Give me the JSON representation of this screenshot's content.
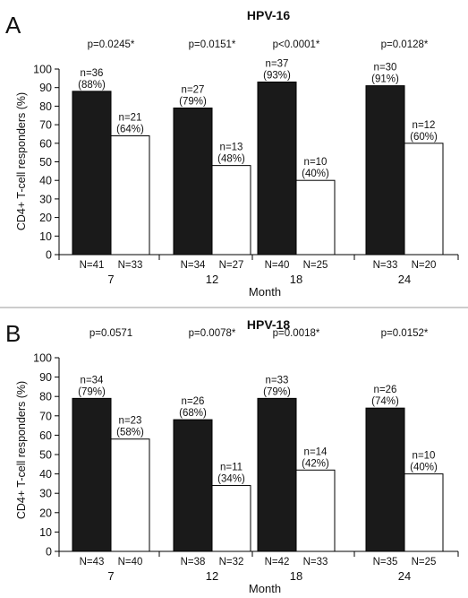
{
  "chart_data": [
    {
      "type": "bar",
      "panel": "A",
      "title": "HPV-16",
      "xlabel": "Month",
      "ylabel": "CD4+ T-cell responders (%)",
      "ylim": [
        0,
        100
      ],
      "yticks": [
        0,
        10,
        20,
        30,
        40,
        50,
        60,
        70,
        80,
        90,
        100
      ],
      "categories": [
        "7",
        "12",
        "18",
        "24"
      ],
      "p_values": [
        "p=0.0245*",
        "p=0.0151*",
        "p<0.0001*",
        "p=0.0128*"
      ],
      "series": [
        {
          "color": "#1a1a1a",
          "values": [
            88,
            79,
            93,
            91
          ],
          "value_labels": [
            [
              "n=36",
              "(88%)"
            ],
            [
              "n=27",
              "(79%)"
            ],
            [
              "n=37",
              "(93%)"
            ],
            [
              "n=30",
              "(91%)"
            ]
          ],
          "group_n": [
            "N=41",
            "N=34",
            "N=40",
            "N=33"
          ]
        },
        {
          "color": "#ffffff",
          "values": [
            64,
            48,
            40,
            60
          ],
          "value_labels": [
            [
              "n=21",
              "(64%)"
            ],
            [
              "n=13",
              "(48%)"
            ],
            [
              "n=10",
              "(40%)"
            ],
            [
              "n=12",
              "(60%)"
            ]
          ],
          "group_n": [
            "N=33",
            "N=27",
            "N=25",
            "N=20"
          ]
        }
      ]
    },
    {
      "type": "bar",
      "panel": "B",
      "title": "HPV-18",
      "xlabel": "Month",
      "ylabel": "CD4+ T-cell responders (%)",
      "ylim": [
        0,
        100
      ],
      "yticks": [
        0,
        10,
        20,
        30,
        40,
        50,
        60,
        70,
        80,
        90,
        100
      ],
      "categories": [
        "7",
        "12",
        "18",
        "24"
      ],
      "p_values": [
        "p=0.0571",
        "p=0.0078*",
        "p=0.0018*",
        "p=0.0152*"
      ],
      "series": [
        {
          "color": "#1a1a1a",
          "values": [
            79,
            68,
            79,
            74
          ],
          "value_labels": [
            [
              "n=34",
              "(79%)"
            ],
            [
              "n=26",
              "(68%)"
            ],
            [
              "n=33",
              "(79%)"
            ],
            [
              "n=26",
              "(74%)"
            ]
          ],
          "group_n": [
            "N=43",
            "N=38",
            "N=42",
            "N=35"
          ]
        },
        {
          "color": "#ffffff",
          "values": [
            58,
            34,
            42,
            40
          ],
          "value_labels": [
            [
              "n=23",
              "(58%)"
            ],
            [
              "n=11",
              "(34%)"
            ],
            [
              "n=14",
              "(42%)"
            ],
            [
              "n=10",
              "(40%)"
            ]
          ],
          "group_n": [
            "N=40",
            "N=32",
            "N=33",
            "N=25"
          ]
        }
      ]
    }
  ]
}
